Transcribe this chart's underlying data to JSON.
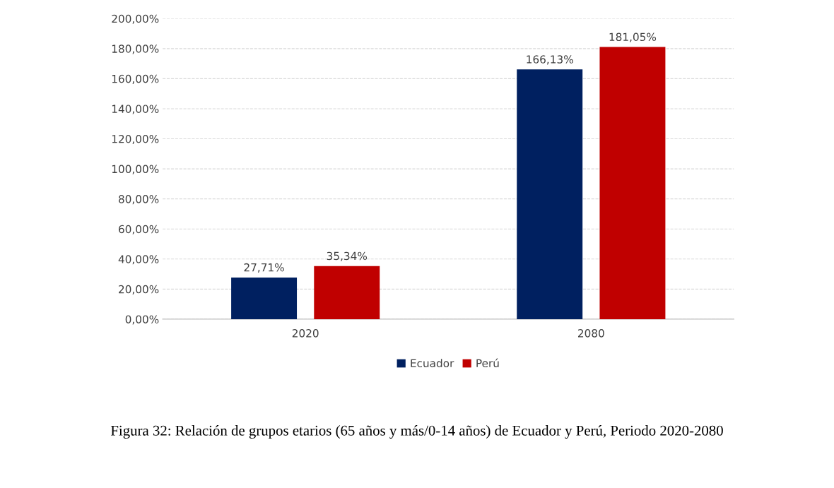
{
  "chart_data": {
    "type": "bar",
    "categories": [
      "2020",
      "2080"
    ],
    "series": [
      {
        "name": "Ecuador",
        "color": "#002060",
        "values": [
          27.71,
          166.13
        ],
        "value_labels": [
          "27,71%",
          "166,13%"
        ]
      },
      {
        "name": "Perú",
        "color": "#c00000",
        "values": [
          35.34,
          181.05
        ],
        "value_labels": [
          "35,34%",
          "181,05%"
        ]
      }
    ],
    "ylim": [
      0,
      200
    ],
    "yticks": [
      {
        "value": 0,
        "label": "0,00%"
      },
      {
        "value": 20,
        "label": "20,00%"
      },
      {
        "value": 40,
        "label": "40,00%"
      },
      {
        "value": 60,
        "label": "60,00%"
      },
      {
        "value": 80,
        "label": "80,00%"
      },
      {
        "value": 100,
        "label": "100,00%"
      },
      {
        "value": 120,
        "label": "120,00%"
      },
      {
        "value": 140,
        "label": "140,00%"
      },
      {
        "value": 160,
        "label": "160,00%"
      },
      {
        "value": 180,
        "label": "180,00%"
      },
      {
        "value": 200,
        "label": "200,00%"
      }
    ],
    "grid": "y",
    "legend": "bottom",
    "annotations": [
      "Figura 32: Relación de grupos etarios (65 años y más/0-14 años) de Ecuador y Perú, Periodo 2020-2080"
    ]
  }
}
